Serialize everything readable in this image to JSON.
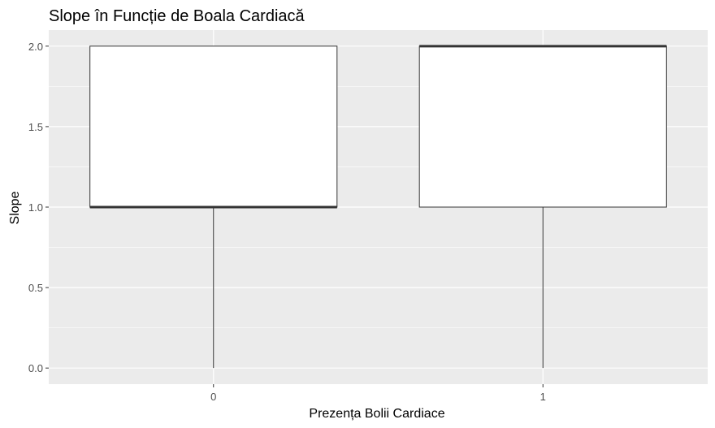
{
  "chart_data": {
    "type": "boxplot",
    "title": "Slope în Funcție de Boala Cardiacă",
    "xlabel": "Prezența Bolii Cardiace",
    "ylabel": "Slope",
    "categories": [
      "0",
      "1"
    ],
    "ylim": [
      -0.1,
      2.1
    ],
    "y_ticks": [
      0.0,
      0.5,
      1.0,
      1.5,
      2.0
    ],
    "y_tick_labels": [
      "0.0",
      "0.5",
      "1.0",
      "1.5",
      "2.0"
    ],
    "boxes": [
      {
        "category": "0",
        "min": 0.0,
        "q1": 1.0,
        "median": 1.0,
        "q3": 2.0,
        "max": 2.0
      },
      {
        "category": "1",
        "min": 0.0,
        "q1": 1.0,
        "median": 2.0,
        "q3": 2.0,
        "max": 2.0
      }
    ],
    "grid": true,
    "colors": {
      "panel_background": "#EBEBEB",
      "grid_major": "#FFFFFF",
      "box_fill": "#FFFFFF",
      "box_stroke": "#333333",
      "text": "#000000",
      "tick_text": "#4D4D4D"
    }
  }
}
